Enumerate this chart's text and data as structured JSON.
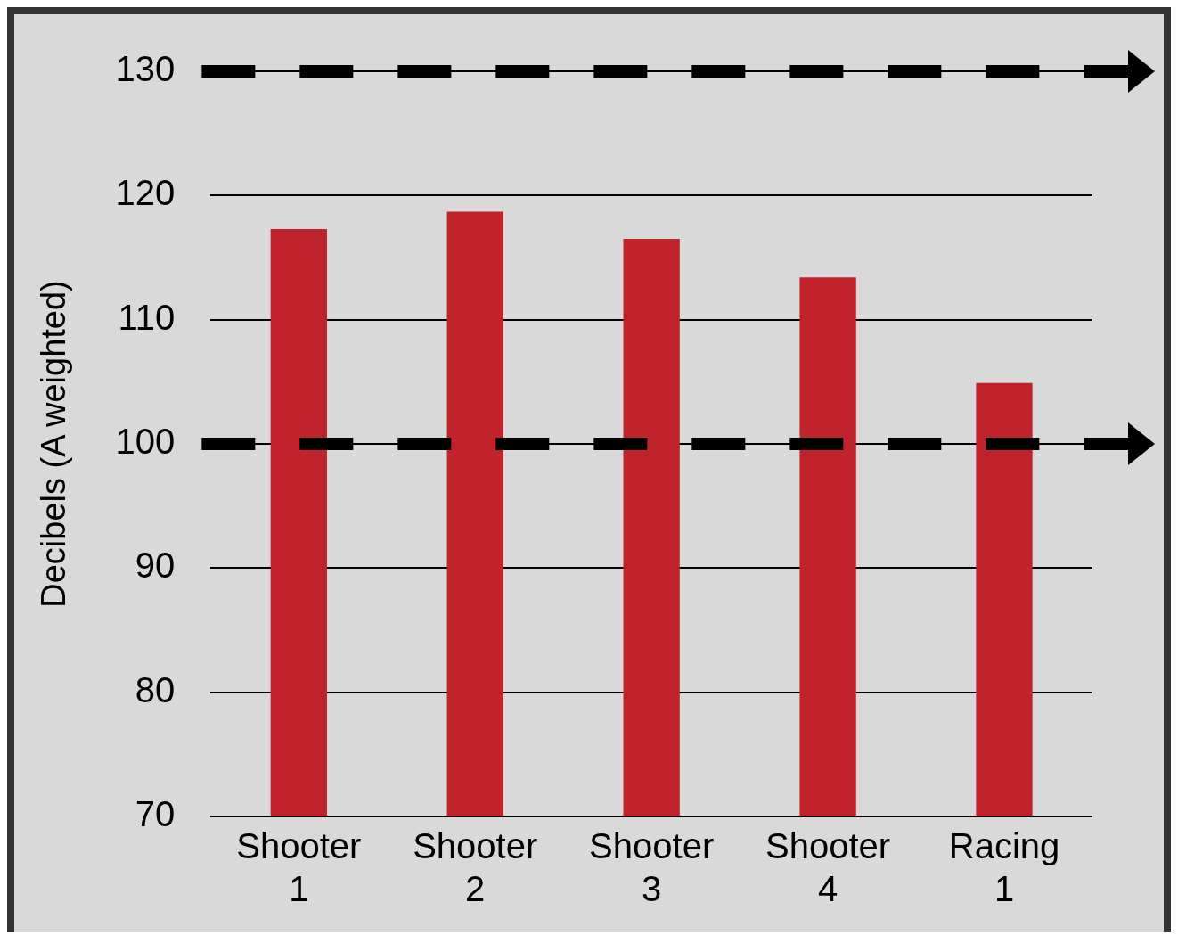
{
  "chart_data": {
    "type": "bar",
    "ylabel": "Decibels (A weighted)",
    "categories": [
      "Shooter 1",
      "Shooter 2",
      "Shooter 3",
      "Shooter 4",
      "Racing 1"
    ],
    "values": [
      117.3,
      118.7,
      116.5,
      113.4,
      104.9
    ],
    "color": "#c0232c",
    "ylim": [
      70,
      130
    ],
    "yticks": [
      70,
      80,
      90,
      100,
      110,
      120,
      130
    ],
    "grid": "y",
    "legend": false,
    "ref_lines": [
      {
        "axis": "y",
        "value": 130,
        "color": "#000000",
        "line_style": "dashed"
      },
      {
        "axis": "y",
        "value": 100,
        "color": "#000000",
        "line_style": "dashed"
      }
    ]
  }
}
